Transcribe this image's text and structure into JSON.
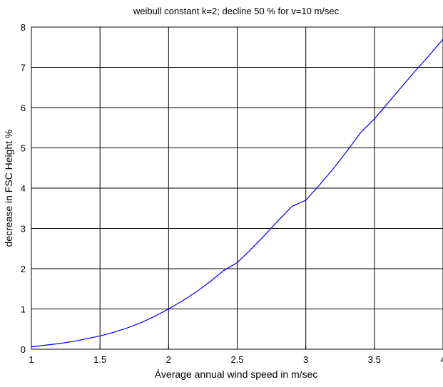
{
  "chart_data": {
    "type": "line",
    "title": "weibull constant k=2; decline 50 % for v=10 m/sec",
    "xlabel": "Áverage annual wind speed in m/sec",
    "ylabel": "decrease in FSC Height %",
    "xlim": [
      1,
      4
    ],
    "ylim": [
      0,
      8
    ],
    "grid": true,
    "x_ticks": [
      "1",
      "1.5",
      "2",
      "2.5",
      "3",
      "3.5",
      "4"
    ],
    "y_ticks": [
      "0",
      "1",
      "2",
      "3",
      "4",
      "5",
      "6",
      "7",
      "8"
    ],
    "series": [
      {
        "color": "#0000ff",
        "x": [
          1.0,
          1.1,
          1.2,
          1.3,
          1.4,
          1.5,
          1.6,
          1.7,
          1.8,
          1.9,
          2.0,
          2.1,
          2.2,
          2.3,
          2.4,
          2.5,
          2.6,
          2.7,
          2.8,
          2.9,
          3.0,
          3.1,
          3.2,
          3.3,
          3.4,
          3.5,
          3.6,
          3.7,
          3.8,
          3.9,
          4.0
        ],
        "y": [
          0.06,
          0.1,
          0.14,
          0.19,
          0.26,
          0.33,
          0.42,
          0.53,
          0.66,
          0.82,
          1.0,
          1.2,
          1.42,
          1.67,
          1.95,
          2.15,
          2.48,
          2.83,
          3.2,
          3.55,
          3.7,
          4.08,
          4.48,
          4.92,
          5.38,
          5.72,
          6.12,
          6.52,
          6.92,
          7.3,
          7.7
        ]
      }
    ]
  }
}
